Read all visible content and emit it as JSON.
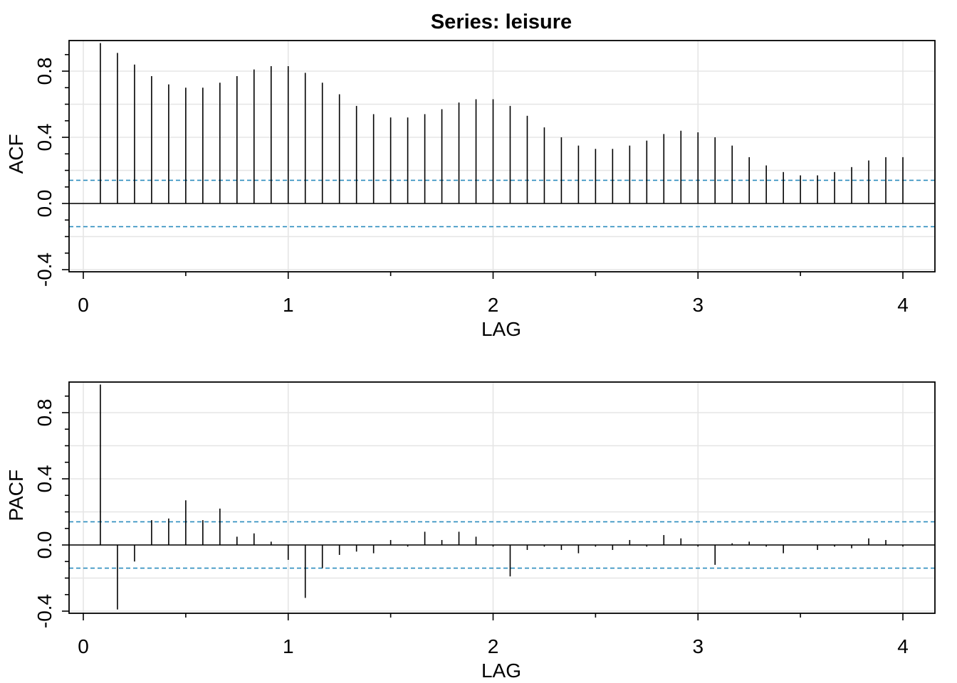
{
  "title": "Series:  leisure",
  "chart_data": [
    {
      "type": "bar",
      "name": "acf-panel",
      "ylabel": "ACF",
      "xlabel": "LAG",
      "xlim": [
        0,
        4
      ],
      "ylim": [
        -0.5,
        1.05
      ],
      "xticks": [
        "0",
        "1",
        "2",
        "3",
        "4"
      ],
      "yticks": [
        "-0.4",
        "0.0",
        "0.4",
        "0.8"
      ],
      "ci": 0.14,
      "grid": true,
      "lags": [
        0.0833,
        0.1667,
        0.25,
        0.3333,
        0.4167,
        0.5,
        0.5833,
        0.6667,
        0.75,
        0.8333,
        0.9167,
        1.0,
        1.0833,
        1.1667,
        1.25,
        1.3333,
        1.4167,
        1.5,
        1.5833,
        1.6667,
        1.75,
        1.8333,
        1.9167,
        2.0,
        2.0833,
        2.1667,
        2.25,
        2.3333,
        2.4167,
        2.5,
        2.5833,
        2.6667,
        2.75,
        2.8333,
        2.9167,
        3.0,
        3.0833,
        3.1667,
        3.25,
        3.3333,
        3.4167,
        3.5,
        3.5833,
        3.6667,
        3.75,
        3.8333,
        3.9167,
        4.0
      ],
      "values": [
        0.97,
        0.91,
        0.84,
        0.77,
        0.72,
        0.7,
        0.7,
        0.73,
        0.77,
        0.81,
        0.83,
        0.83,
        0.79,
        0.73,
        0.66,
        0.59,
        0.54,
        0.52,
        0.52,
        0.54,
        0.57,
        0.61,
        0.63,
        0.63,
        0.59,
        0.53,
        0.46,
        0.4,
        0.35,
        0.33,
        0.33,
        0.35,
        0.38,
        0.42,
        0.44,
        0.43,
        0.4,
        0.35,
        0.28,
        0.23,
        0.19,
        0.17,
        0.17,
        0.19,
        0.22,
        0.26,
        0.28,
        0.28
      ]
    },
    {
      "type": "bar",
      "name": "pacf-panel",
      "ylabel": "PACF",
      "xlabel": "LAG",
      "xlim": [
        0,
        4
      ],
      "ylim": [
        -0.5,
        1.05
      ],
      "xticks": [
        "0",
        "1",
        "2",
        "3",
        "4"
      ],
      "yticks": [
        "-0.4",
        "0.0",
        "0.4",
        "0.8"
      ],
      "ci": 0.14,
      "grid": true,
      "lags": [
        0.0833,
        0.1667,
        0.25,
        0.3333,
        0.4167,
        0.5,
        0.5833,
        0.6667,
        0.75,
        0.8333,
        0.9167,
        1.0,
        1.0833,
        1.1667,
        1.25,
        1.3333,
        1.4167,
        1.5,
        1.5833,
        1.6667,
        1.75,
        1.8333,
        1.9167,
        2.0,
        2.0833,
        2.1667,
        2.25,
        2.3333,
        2.4167,
        2.5,
        2.5833,
        2.6667,
        2.75,
        2.8333,
        2.9167,
        3.0,
        3.0833,
        3.1667,
        3.25,
        3.3333,
        3.4167,
        3.5,
        3.5833,
        3.6667,
        3.75,
        3.8333,
        3.9167,
        4.0
      ],
      "values": [
        0.97,
        -0.39,
        -0.1,
        0.15,
        0.16,
        0.27,
        0.15,
        0.22,
        0.05,
        0.07,
        0.02,
        -0.09,
        -0.32,
        -0.14,
        -0.06,
        -0.04,
        -0.05,
        0.03,
        -0.01,
        0.08,
        0.03,
        0.08,
        0.05,
        -0.01,
        -0.19,
        -0.03,
        -0.01,
        -0.03,
        -0.05,
        -0.01,
        -0.03,
        0.03,
        -0.01,
        0.06,
        0.04,
        -0.01,
        -0.12,
        0.01,
        0.02,
        -0.01,
        -0.05,
        0.0,
        -0.03,
        -0.01,
        -0.02,
        0.04,
        0.03,
        -0.01
      ]
    }
  ]
}
